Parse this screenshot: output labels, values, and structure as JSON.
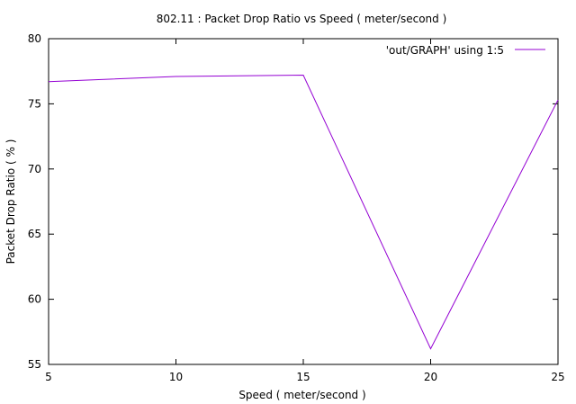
{
  "chart_data": {
    "type": "line",
    "title": "802.11 : Packet Drop Ratio vs Speed ( meter/second )",
    "xlabel": "Speed ( meter/second )",
    "ylabel": "Packet Drop Ratio ( % )",
    "xlim": [
      5,
      25
    ],
    "ylim": [
      55,
      80
    ],
    "xticks": [
      5,
      10,
      15,
      20,
      25
    ],
    "yticks": [
      55,
      60,
      65,
      70,
      75,
      80
    ],
    "grid": false,
    "legend_position": "top-right",
    "series": [
      {
        "name": "'out/GRAPH' using 1:5",
        "color": "#9400d3",
        "x": [
          5,
          10,
          15,
          20,
          25
        ],
        "y": [
          76.7,
          77.1,
          77.2,
          56.2,
          75.3
        ]
      }
    ]
  }
}
